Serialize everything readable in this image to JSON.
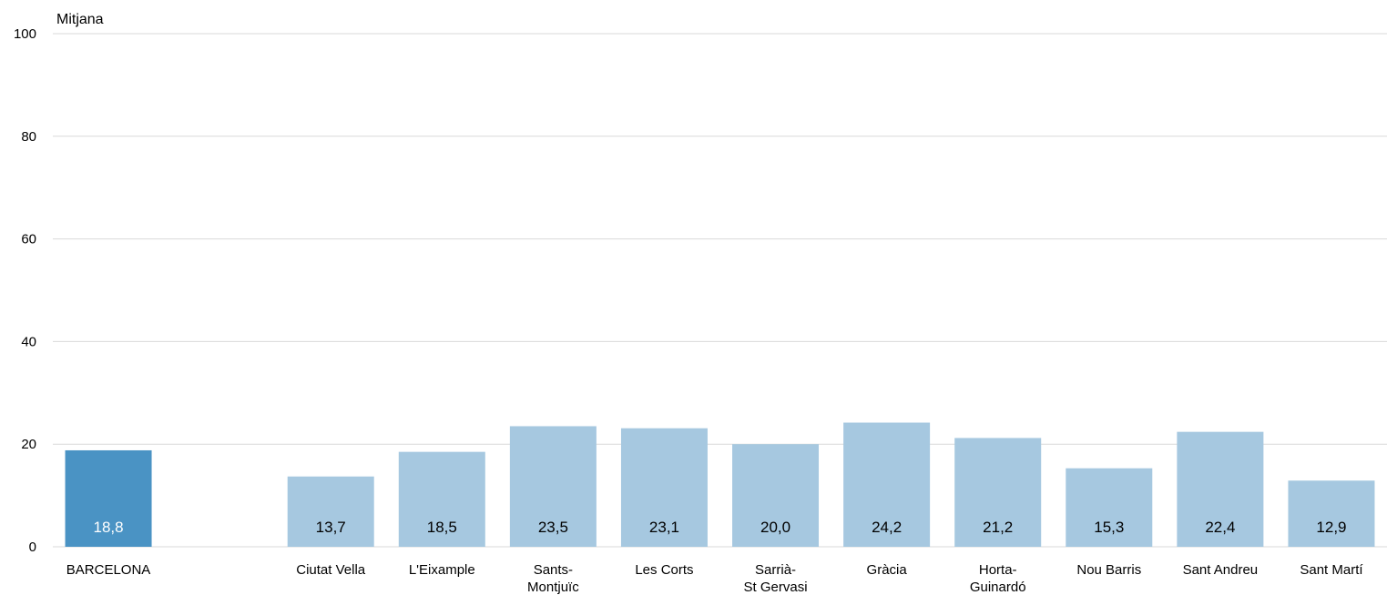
{
  "chart_data": {
    "type": "bar",
    "ylabel": "Mitjana",
    "ylim": [
      0,
      100
    ],
    "yticks": [
      0,
      20,
      40,
      60,
      80,
      100
    ],
    "grid": true,
    "categories": [
      [
        "BARCELONA"
      ],
      [],
      [
        "Ciutat Vella"
      ],
      [
        "L'Eixample"
      ],
      [
        "Sants-",
        "Montjuïc"
      ],
      [
        "Les Corts"
      ],
      [
        "Sarrià-",
        "St Gervasi"
      ],
      [
        "Gràcia"
      ],
      [
        "Horta-",
        "Guinardó"
      ],
      [
        "Nou Barris"
      ],
      [
        "Sant Andreu"
      ],
      [
        "Sant Martí"
      ]
    ],
    "values": [
      18.8,
      null,
      13.7,
      18.5,
      23.5,
      23.1,
      20.0,
      24.2,
      21.2,
      15.3,
      22.4,
      12.9
    ],
    "value_labels": [
      "18,8",
      "",
      "13,7",
      "18,5",
      "23,5",
      "23,1",
      "20,0",
      "24,2",
      "21,2",
      "15,3",
      "22,4",
      "12,9"
    ],
    "colors": {
      "highlight": "#4a93c4",
      "bar": "#a6c8e0",
      "highlight_label": "#ffffff",
      "bar_label": "#000000",
      "grid": "#d9d9d9"
    }
  }
}
